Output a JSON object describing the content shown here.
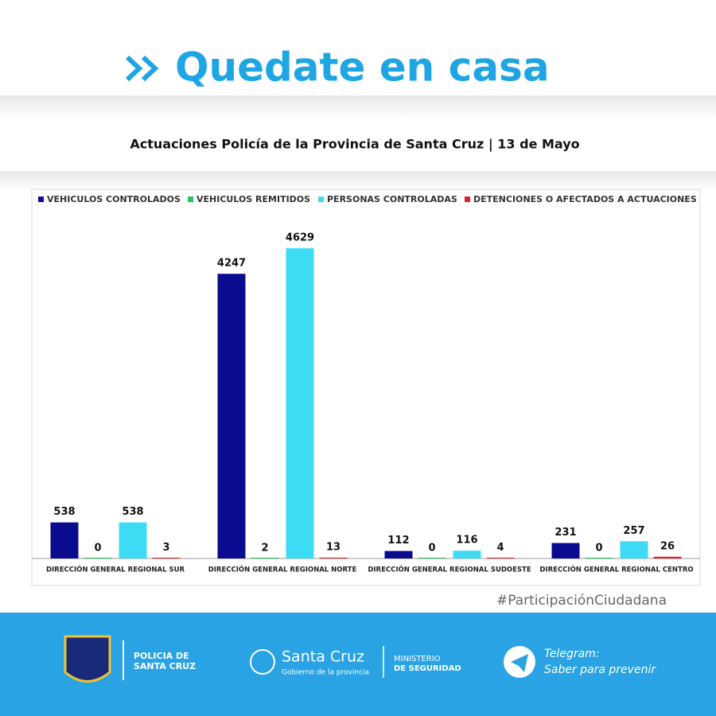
{
  "header": {
    "title": "Quedate en casa"
  },
  "chart_data": {
    "type": "bar",
    "title": "Actuaciones Policía de la Provincia de Santa Cruz | 13 de Mayo",
    "categories": [
      "DIRECCIÓN GENERAL REGIONAL SUR",
      "DIRECCIÓN GENERAL REGIONAL NORTE",
      "DIRECCIÓN GENERAL REGIONAL SUDOESTE",
      "DIRECCIÓN GENERAL REGIONAL CENTRO"
    ],
    "series": [
      {
        "name": "VEHICULOS CONTROLADOS",
        "color": "#0b0b8f",
        "values": [
          538,
          4247,
          112,
          231
        ]
      },
      {
        "name": "VEHICULOS REMITIDOS",
        "color": "#22c55e",
        "values": [
          0,
          2,
          0,
          0
        ]
      },
      {
        "name": "PERSONAS CONTROLADAS",
        "color": "#3ddcf4",
        "values": [
          538,
          4629,
          116,
          257
        ]
      },
      {
        "name": "DETENCIONES O AFECTADOS A ACTUACIONES",
        "color": "#e11d2a",
        "values": [
          3,
          13,
          4,
          26
        ]
      }
    ]
  },
  "hashtag": "#ParticipaciónCiudadana",
  "footer": {
    "police": [
      "POLICIA DE",
      "SANTA CRUZ"
    ],
    "government": {
      "name": "Santa Cruz",
      "subtitle": "Gobierno de la provincia"
    },
    "ministry": [
      "MINISTERIO",
      "DE SEGURIDAD"
    ],
    "telegram": [
      "Telegram:",
      "Saber para prevenir"
    ]
  }
}
